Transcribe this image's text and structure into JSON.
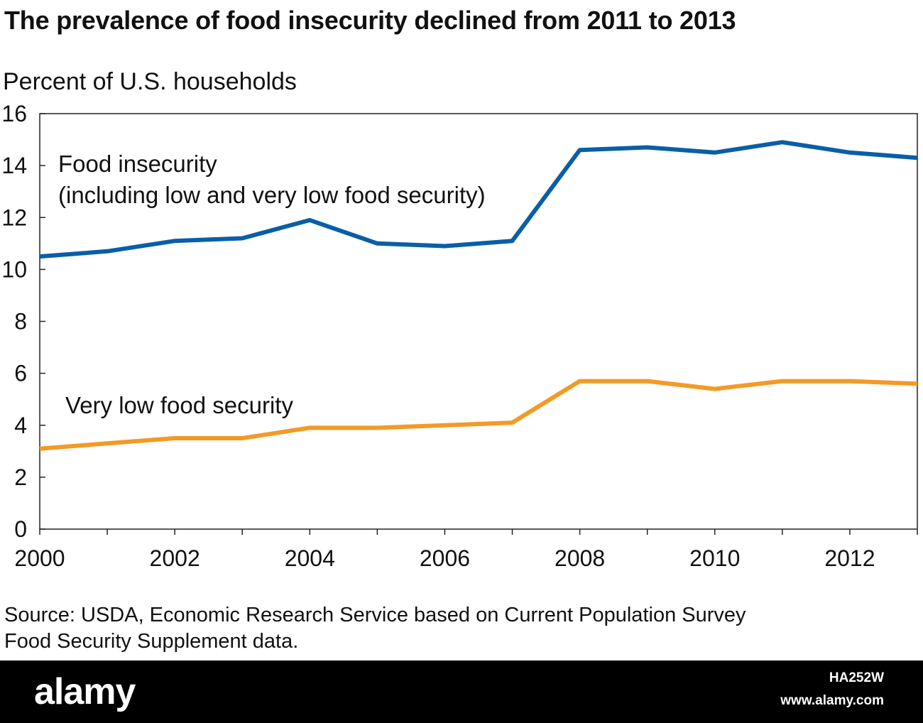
{
  "title": "The prevalence of food insecurity declined from 2011 to 2013",
  "source_lines": [
    "Source: USDA, Economic Research Service based on Current Population Survey",
    "Food Security Supplement data."
  ],
  "footer": {
    "logo": "alamy",
    "image_id": "HA252W",
    "site": "www.alamy.com"
  },
  "chart_data": {
    "type": "line",
    "title": "The prevalence of food insecurity declined from 2011 to 2013",
    "xlabel": "",
    "ylabel": "Percent of U.S. households",
    "x": [
      2000,
      2001,
      2002,
      2003,
      2004,
      2005,
      2006,
      2007,
      2008,
      2009,
      2010,
      2011,
      2012,
      2013
    ],
    "xlim": [
      2000,
      2013
    ],
    "ylim": [
      0,
      16
    ],
    "yticks": [
      0,
      2,
      4,
      6,
      8,
      10,
      12,
      14,
      16
    ],
    "xticks": [
      2000,
      2002,
      2004,
      2006,
      2008,
      2010,
      2012
    ],
    "grid": false,
    "series": [
      {
        "name_lines": [
          "Food insecurity",
          "(including low and very low food security)"
        ],
        "color": "#0a5ea8",
        "values": [
          10.5,
          10.7,
          11.1,
          11.2,
          11.9,
          11.0,
          10.9,
          11.1,
          14.6,
          14.7,
          14.5,
          14.9,
          14.5,
          14.3
        ]
      },
      {
        "name_lines": [
          "Very low food security"
        ],
        "color": "#f39a26",
        "values": [
          3.1,
          3.3,
          3.5,
          3.5,
          3.9,
          3.9,
          4.0,
          4.1,
          5.7,
          5.7,
          5.4,
          5.7,
          5.7,
          5.6
        ]
      }
    ]
  }
}
